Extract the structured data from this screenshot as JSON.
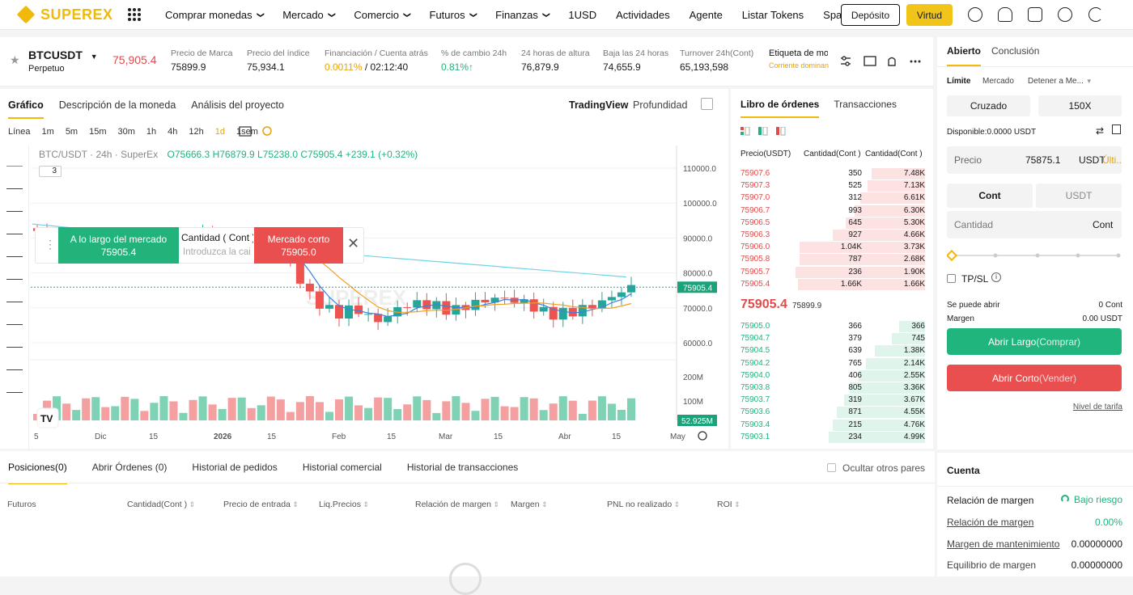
{
  "topnav": {
    "logo": "SUPEREX",
    "items": [
      "Comprar monedas",
      "Mercado",
      "Comercio",
      "Futuros",
      "Finanzas",
      "1USD",
      "Actividades",
      "Agente",
      "Listar Tokens",
      "Space"
    ],
    "has_chevron": [
      true,
      true,
      true,
      true,
      true,
      false,
      false,
      false,
      false,
      false
    ],
    "deposit": "Depósito",
    "vip": "Virtud"
  },
  "ticker": {
    "symbol": "BTCUSDT",
    "type": "Perpetuo",
    "price": "75,905.4",
    "stats": [
      {
        "label": "Precio de Marca",
        "value": "75899.9",
        "color": "#1a1a1a"
      },
      {
        "label": "Precio del índice",
        "value": "75,934.1",
        "color": "#1a1a1a"
      },
      {
        "label": "Financiación / Cuenta atrás",
        "value": "0.0011%",
        "value2": " / 02:12:40",
        "color": "#e8a30a"
      },
      {
        "label": "% de cambio 24h",
        "value": "0.81%↑",
        "color": "#22b37a"
      },
      {
        "label": "24 horas de altura",
        "value": "76,879.9",
        "color": "#1a1a1a"
      },
      {
        "label": "Baja las 24 horas",
        "value": "74,655.9",
        "color": "#1a1a1a"
      },
      {
        "label": "Turnover 24h(Cont)",
        "value": "65,193,598",
        "color": "#1a1a1a"
      },
      {
        "label": "Etiqueta de mor",
        "value": "Corriente dominan",
        "color": "#e8a30a"
      }
    ]
  },
  "chart": {
    "tabs": [
      "Gráfico",
      "Descripción de la moneda",
      "Análisis del proyecto"
    ],
    "view_tabs": [
      "TradingView",
      "Profundidad"
    ],
    "timeframes": [
      "Línea",
      "1m",
      "5m",
      "15m",
      "30m",
      "1h",
      "4h",
      "12h",
      "1d",
      "1sem"
    ],
    "selected_tf": "1d",
    "legend": "BTC/USDT · 24h · SuperEx",
    "ohlc": {
      "o": "O75666.3",
      "h": "H76879.9",
      "l": "L75238.0",
      "c": "C75905.4",
      "chg": "+239.1 (+0.32%)"
    },
    "indicator_count": "3",
    "price_axis": [
      "110000.0",
      "100000.0",
      "90000.0",
      "80000.0",
      "70000.0",
      "60000.0"
    ],
    "price_tag": "75905.4",
    "vol_axis": [
      "200M",
      "100M"
    ],
    "vol_tag": "52.925M",
    "x_labels": [
      "5",
      "Dic",
      "15",
      "2026",
      "15",
      "Feb",
      "15",
      "Mar",
      "15",
      "Abr",
      "15",
      "May"
    ],
    "watermark": "SUPEREX",
    "quick_trade": {
      "long_label": "A lo largo del mercado",
      "long_price": "75905.4",
      "qty_label": "Cantidad ( Cont )",
      "qty_placeholder": "Introduzca la cai",
      "short_label": "Mercado corto",
      "short_price": "75905.0"
    },
    "chart_data": {
      "type": "candlestick",
      "x_range": [
        "Nov 2025",
        "May 2026"
      ],
      "ylim": [
        55000,
        115000
      ],
      "last": 75905.4,
      "high_24h": 76879.9,
      "low_24h": 74655.9
    }
  },
  "orderbook": {
    "tabs": [
      "Libro de órdenes",
      "Transacciones"
    ],
    "headers": [
      "Precio(USDT)",
      "Cantidad(Cont )",
      "Cantidad(Cont )"
    ],
    "asks": [
      [
        "75907.6",
        "350",
        "7.48K",
        0.29
      ],
      [
        "75907.3",
        "525",
        "7.13K",
        0.31
      ],
      [
        "75907.0",
        "312",
        "6.61K",
        0.35
      ],
      [
        "75906.7",
        "993",
        "6.30K",
        0.38
      ],
      [
        "75906.5",
        "645",
        "5.30K",
        0.43
      ],
      [
        "75906.3",
        "927",
        "4.66K",
        0.5
      ],
      [
        "75906.0",
        "1.04K",
        "3.73K",
        0.68
      ],
      [
        "75905.8",
        "787",
        "2.68K",
        0.68
      ],
      [
        "75905.7",
        "236",
        "1.90K",
        0.7
      ],
      [
        "75905.4",
        "1.66K",
        "1.66K",
        0.69
      ]
    ],
    "last_price": "75905.4",
    "mark": "75899.9",
    "bids": [
      [
        "75905.0",
        "366",
        "366",
        0.14
      ],
      [
        "75904.7",
        "379",
        "745",
        0.18
      ],
      [
        "75904.5",
        "639",
        "1.38K",
        0.27
      ],
      [
        "75904.2",
        "765",
        "2.14K",
        0.32
      ],
      [
        "75904.0",
        "406",
        "2.55K",
        0.36
      ],
      [
        "75903.8",
        "805",
        "3.36K",
        0.41
      ],
      [
        "75903.7",
        "319",
        "3.67K",
        0.44
      ],
      [
        "75903.6",
        "871",
        "4.55K",
        0.48
      ],
      [
        "75903.4",
        "215",
        "4.76K",
        0.5
      ],
      [
        "75903.1",
        "234",
        "4.99K",
        0.52
      ]
    ]
  },
  "order_form": {
    "tabs": [
      "Abierto",
      "Conclusión"
    ],
    "order_types": [
      "Límite",
      "Mercado",
      "Detener a Me..."
    ],
    "margin_mode": "Cruzado",
    "leverage": "150X",
    "available": "Disponible:0.0000 USDT",
    "price_label": "Precio",
    "price_value": "75875.1",
    "price_unit": "USDT",
    "price_last": "Últi...",
    "unit_tabs": [
      "Cont",
      "USDT"
    ],
    "qty_label": "Cantidad",
    "qty_unit": "Cont",
    "tpsl": "TP/SL",
    "can_open_label": "Se puede abrir",
    "can_open_value": "0 Cont",
    "margin_label": "Margen",
    "margin_value": "0.00 USDT",
    "open_long": "Abrir Largo",
    "open_long_sub": "(Comprar)",
    "open_short": "Abrir Corto",
    "open_short_sub": " (Vender)",
    "fee_link": "Nivel de tarifa"
  },
  "positions": {
    "tabs": [
      "Posiciones(0)",
      "Abrir Órdenes (0)",
      "Historial de pedidos",
      "Historial comercial",
      "Historial de transacciones"
    ],
    "hide_label": "Ocultar otros pares",
    "columns": [
      "Futuros",
      "Cantidad(Cont )",
      "Precio de entrada",
      "Liq.Precios",
      "Relación de margen",
      "Margen",
      "PNL no realizado",
      "ROI"
    ]
  },
  "account": {
    "title": "Cuenta",
    "rows": [
      {
        "label": "Relación de margen",
        "value": "Bajo riesgo"
      },
      {
        "label": "Relación de margen",
        "value": "0.00%"
      },
      {
        "label": "Margen de mantenimiento",
        "value": "0.00000000"
      },
      {
        "label": "Equilibrio de margen",
        "value": "0.00000000"
      }
    ]
  },
  "colors": {
    "brand": "#f0b90b",
    "up": "#22b37a",
    "down": "#e04b4b"
  }
}
